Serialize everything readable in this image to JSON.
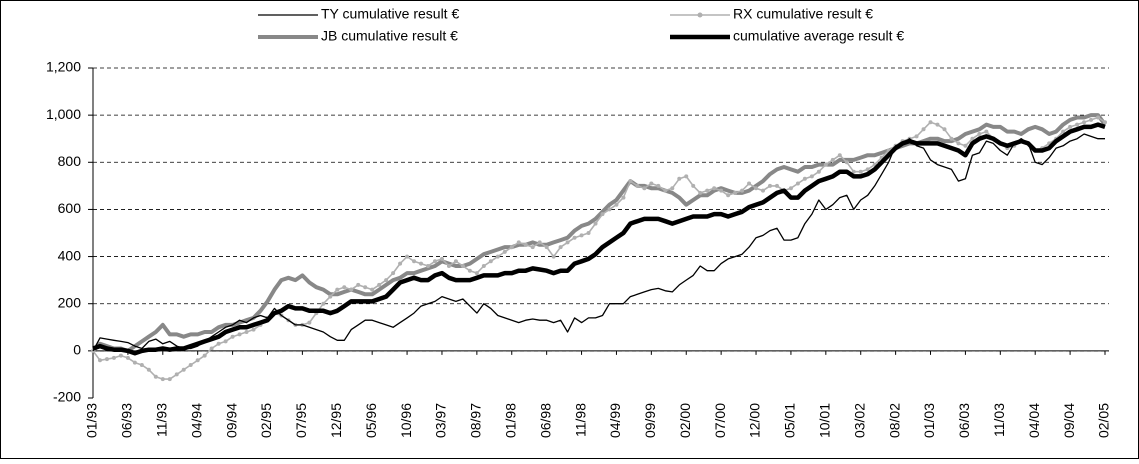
{
  "chart_data": {
    "type": "line",
    "categories": [
      "01/93",
      null,
      null,
      null,
      null,
      "06/93",
      null,
      null,
      null,
      null,
      "11/93",
      null,
      null,
      null,
      null,
      "04/94",
      null,
      null,
      null,
      null,
      "09/94",
      null,
      null,
      null,
      null,
      "02/95",
      null,
      null,
      null,
      null,
      "07/95",
      null,
      null,
      null,
      null,
      "12/95",
      null,
      null,
      null,
      null,
      "05/96",
      null,
      null,
      null,
      null,
      "10/96",
      null,
      null,
      null,
      null,
      "03/97",
      null,
      null,
      null,
      null,
      "08/97",
      null,
      null,
      null,
      null,
      "01/98",
      null,
      null,
      null,
      null,
      "06/98",
      null,
      null,
      null,
      null,
      "11/98",
      null,
      null,
      null,
      null,
      "04/99",
      null,
      null,
      null,
      null,
      "09/99",
      null,
      null,
      null,
      null,
      "02/00",
      null,
      null,
      null,
      null,
      "07/00",
      null,
      null,
      null,
      null,
      "12/00",
      null,
      null,
      null,
      null,
      "05/01",
      null,
      null,
      null,
      null,
      "10/01",
      null,
      null,
      null,
      null,
      "03/02",
      null,
      null,
      null,
      null,
      "08/02",
      null,
      null,
      null,
      null,
      "01/03",
      null,
      null,
      null,
      null,
      "06/03",
      null,
      null,
      null,
      null,
      "11/03",
      null,
      null,
      null,
      null,
      "04/04",
      null,
      null,
      null,
      null,
      "09/04",
      null,
      null,
      null,
      null,
      "02/05"
    ],
    "series": [
      {
        "name": "TY cumulative result €",
        "color": "#000000",
        "width": 1.3,
        "values": [
          0,
          55,
          50,
          45,
          40,
          35,
          20,
          10,
          40,
          50,
          30,
          40,
          20,
          10,
          10,
          20,
          40,
          60,
          80,
          100,
          110,
          130,
          120,
          140,
          150,
          140,
          180,
          150,
          130,
          110,
          110,
          100,
          90,
          80,
          60,
          45,
          45,
          90,
          110,
          130,
          130,
          120,
          110,
          100,
          120,
          140,
          160,
          190,
          200,
          210,
          230,
          220,
          210,
          220,
          190,
          160,
          200,
          180,
          150,
          140,
          130,
          120,
          130,
          135,
          130,
          130,
          120,
          130,
          80,
          140,
          120,
          140,
          140,
          150,
          200,
          200,
          200,
          230,
          240,
          250,
          260,
          265,
          255,
          250,
          280,
          300,
          320,
          360,
          340,
          340,
          370,
          390,
          400,
          410,
          440,
          480,
          490,
          510,
          520,
          470,
          470,
          480,
          540,
          580,
          640,
          600,
          620,
          650,
          660,
          600,
          640,
          660,
          700,
          750,
          800,
          870,
          880,
          900,
          870,
          860,
          810,
          790,
          780,
          770,
          720,
          730,
          830,
          840,
          890,
          880,
          850,
          830,
          880,
          900,
          880,
          800,
          790,
          820,
          860,
          870,
          890,
          900,
          920,
          910,
          900,
          900
        ]
      },
      {
        "name": "RX cumulative result €",
        "color": "#b0b0b0",
        "width": 1.6,
        "markers": true,
        "values": [
          0,
          -40,
          -35,
          -30,
          -20,
          -30,
          -50,
          -60,
          -80,
          -110,
          -120,
          -120,
          -100,
          -80,
          -60,
          -40,
          -20,
          10,
          30,
          40,
          60,
          70,
          80,
          90,
          110,
          140,
          160,
          150,
          130,
          110,
          110,
          120,
          160,
          200,
          230,
          260,
          270,
          260,
          280,
          270,
          260,
          280,
          300,
          330,
          370,
          400,
          380,
          370,
          360,
          380,
          390,
          360,
          380,
          360,
          340,
          330,
          360,
          380,
          400,
          420,
          440,
          460,
          450,
          440,
          460,
          440,
          400,
          440,
          460,
          480,
          490,
          500,
          540,
          580,
          600,
          620,
          650,
          720,
          700,
          690,
          710,
          700,
          680,
          690,
          730,
          740,
          700,
          670,
          680,
          690,
          680,
          660,
          670,
          680,
          710,
          690,
          680,
          700,
          700,
          680,
          690,
          710,
          730,
          740,
          760,
          790,
          810,
          830,
          800,
          760,
          760,
          770,
          790,
          820,
          850,
          870,
          890,
          900,
          910,
          940,
          970,
          960,
          940,
          900,
          880,
          870,
          900,
          920,
          930,
          900,
          880,
          860,
          870,
          890,
          880,
          850,
          860,
          880,
          900,
          930,
          950,
          960,
          970,
          980,
          990,
          970
        ]
      },
      {
        "name": "JB cumulative result €",
        "color": "#888888",
        "width": 4,
        "values": [
          0,
          30,
          20,
          10,
          10,
          0,
          20,
          40,
          60,
          80,
          110,
          70,
          70,
          60,
          70,
          70,
          80,
          80,
          100,
          110,
          110,
          120,
          130,
          140,
          170,
          210,
          260,
          300,
          310,
          300,
          320,
          290,
          270,
          260,
          240,
          240,
          250,
          260,
          250,
          240,
          240,
          260,
          280,
          300,
          310,
          330,
          330,
          340,
          350,
          360,
          380,
          370,
          360,
          360,
          370,
          390,
          410,
          420,
          430,
          440,
          440,
          450,
          450,
          460,
          450,
          450,
          460,
          470,
          480,
          510,
          530,
          540,
          560,
          590,
          620,
          640,
          680,
          720,
          700,
          700,
          690,
          690,
          680,
          670,
          650,
          620,
          640,
          660,
          660,
          680,
          690,
          680,
          670,
          670,
          680,
          700,
          720,
          750,
          770,
          780,
          770,
          760,
          780,
          780,
          790,
          790,
          790,
          810,
          810,
          810,
          820,
          830,
          830,
          840,
          850,
          860,
          870,
          880,
          880,
          890,
          900,
          900,
          890,
          890,
          900,
          920,
          930,
          940,
          960,
          950,
          950,
          930,
          930,
          920,
          940,
          950,
          940,
          920,
          930,
          960,
          980,
          990,
          990,
          1000,
          1000,
          960
        ]
      },
      {
        "name": "cumulative average result €",
        "color": "#000000",
        "width": 4.5,
        "values": [
          10,
          20,
          10,
          5,
          5,
          0,
          -10,
          0,
          5,
          5,
          10,
          5,
          10,
          10,
          20,
          30,
          40,
          50,
          60,
          80,
          90,
          100,
          100,
          110,
          120,
          130,
          160,
          170,
          190,
          180,
          180,
          170,
          170,
          170,
          160,
          170,
          190,
          210,
          210,
          210,
          210,
          220,
          230,
          260,
          290,
          300,
          310,
          300,
          300,
          320,
          330,
          310,
          300,
          300,
          300,
          310,
          320,
          320,
          320,
          330,
          330,
          340,
          340,
          350,
          345,
          340,
          330,
          340,
          340,
          370,
          380,
          390,
          410,
          440,
          460,
          480,
          500,
          540,
          550,
          560,
          560,
          560,
          550,
          540,
          550,
          560,
          570,
          570,
          570,
          580,
          580,
          570,
          580,
          590,
          610,
          620,
          630,
          650,
          670,
          680,
          650,
          650,
          680,
          700,
          720,
          730,
          740,
          760,
          760,
          740,
          740,
          750,
          770,
          800,
          830,
          860,
          880,
          890,
          880,
          880,
          880,
          880,
          870,
          860,
          850,
          830,
          880,
          900,
          910,
          900,
          880,
          870,
          880,
          890,
          880,
          850,
          850,
          860,
          890,
          910,
          930,
          940,
          950,
          950,
          960,
          950
        ]
      }
    ],
    "ylim": [
      -200,
      1200
    ],
    "yticks": [
      -200,
      0,
      200,
      400,
      600,
      800,
      {
        "value": 1000,
        "label": "1,000"
      },
      {
        "value": 1200,
        "label": "1,200"
      }
    ],
    "grid": true,
    "legend": "top"
  }
}
